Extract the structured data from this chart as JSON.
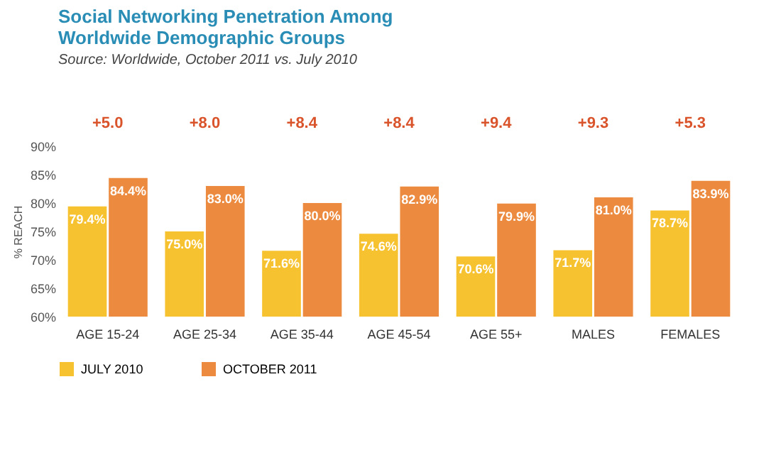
{
  "chart_data": {
    "type": "bar",
    "title": "Social Networking Penetration Among Worldwide Demographic Groups",
    "subtitle": "Source: Worldwide, October 2011 vs. July 2010",
    "categories": [
      "AGE 15-24",
      "AGE 25-34",
      "AGE 35-44",
      "AGE 45-54",
      "AGE 55+",
      "MALES",
      "FEMALES"
    ],
    "series": [
      {
        "name": "JULY 2010",
        "color": "#f7c230",
        "values": [
          79.4,
          75.0,
          71.6,
          74.6,
          70.6,
          71.7,
          78.7
        ],
        "value_labels": [
          "79.4%",
          "75.0%",
          "71.6%",
          "74.6%",
          "70.6%",
          "71.7%",
          "78.7%"
        ]
      },
      {
        "name": "OCTOBER 2011",
        "color": "#ec8b3f",
        "values": [
          84.4,
          83.0,
          80.0,
          82.9,
          79.9,
          81.0,
          83.9
        ],
        "value_labels": [
          "84.4%",
          "83.0%",
          "80.0%",
          "82.9%",
          "79.9%",
          "81.0%",
          "83.9%"
        ]
      }
    ],
    "annotations": [
      "+5.0",
      "+8.0",
      "+8.4",
      "+8.4",
      "+9.4",
      "+9.3",
      "+5.3"
    ],
    "ylabel": "% REACH",
    "ylim": [
      60,
      90
    ],
    "yticks": [
      {
        "value": 60,
        "label": "60%"
      },
      {
        "value": 65,
        "label": "65%"
      },
      {
        "value": 70,
        "label": "70%"
      },
      {
        "value": 75,
        "label": "75%"
      },
      {
        "value": 80,
        "label": "80%"
      },
      {
        "value": 85,
        "label": "85%"
      },
      {
        "value": 90,
        "label": "90%"
      }
    ],
    "legend": "bottom left"
  }
}
